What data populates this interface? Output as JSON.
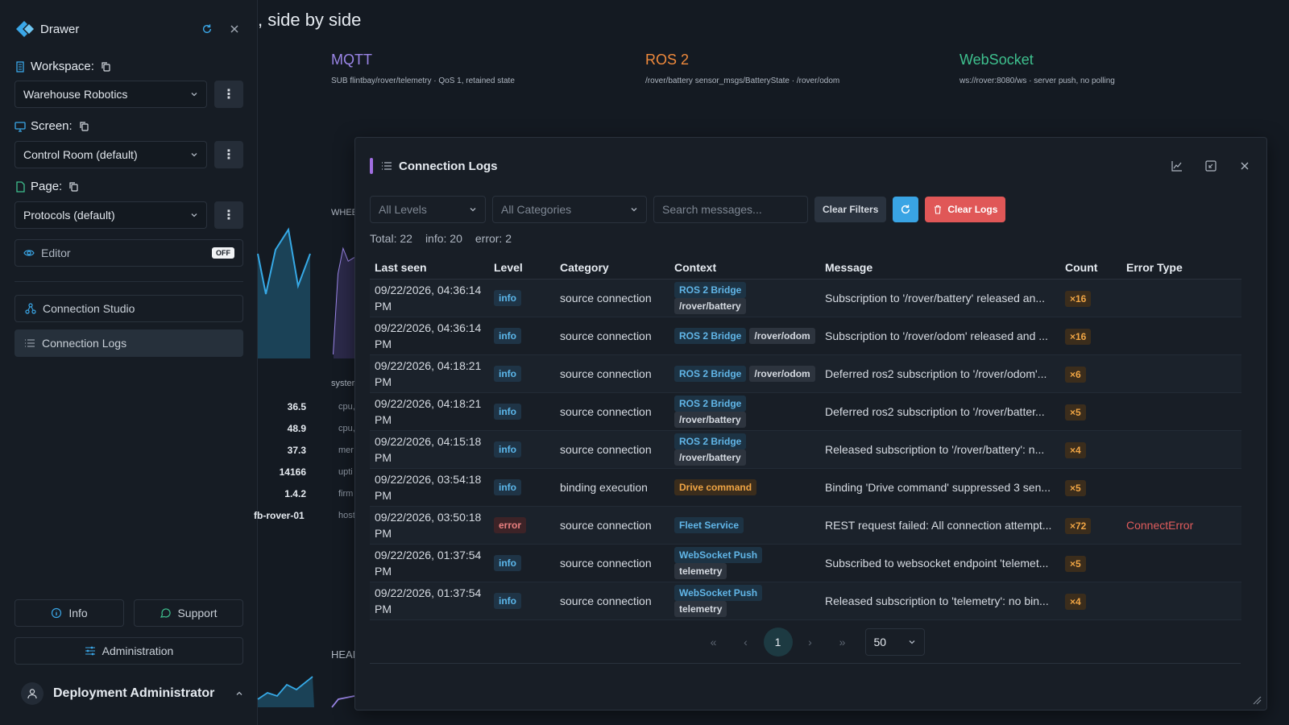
{
  "drawer": {
    "title": "Drawer",
    "workspace": {
      "label": "Workspace:",
      "value": "Warehouse Robotics"
    },
    "screen": {
      "label": "Screen:",
      "value": "Control Room (default)"
    },
    "page": {
      "label": "Page:",
      "value": "Protocols (default)"
    },
    "editor": {
      "label": "Editor",
      "state": "OFF"
    },
    "nav": [
      {
        "label": "Connection Studio",
        "icon": "network-icon"
      },
      {
        "label": "Connection Logs",
        "icon": "list-icon"
      }
    ],
    "footer": {
      "info": "Info",
      "support": "Support",
      "admin": "Administration",
      "user": "Deployment Administrator"
    }
  },
  "background": {
    "title": ", side by side",
    "protocols": [
      {
        "name": "MQTT",
        "sub": "SUB flintbay/rover/telemetry · QoS 1, retained state",
        "color": "#9b86e8"
      },
      {
        "name": "ROS 2",
        "sub": "/rover/battery sensor_msgs/BatteryState · /rover/odom",
        "color": "#f08a3c"
      },
      {
        "name": "WebSocket",
        "sub": "ws://rover:8080/ws · server push, no polling",
        "color": "#3ec08e"
      }
    ],
    "section_wheel": "WHEE",
    "section_system": "syster",
    "section_head": "HEAD",
    "stats": [
      {
        "value": "36.5",
        "key": "cpu,"
      },
      {
        "value": "48.9",
        "key": "cpu,"
      },
      {
        "value": "37.3",
        "key": "mer"
      },
      {
        "value": "14166",
        "key": "upti"
      },
      {
        "value": "1.4.2",
        "key": "firm"
      },
      {
        "value": "fb-rover-01",
        "key": "host"
      }
    ]
  },
  "logs": {
    "title": "Connection Logs",
    "filters": {
      "levels": "All Levels",
      "categories": "All Categories",
      "search_placeholder": "Search messages...",
      "clear_filters": "Clear Filters",
      "clear_logs": "Clear Logs"
    },
    "summary": {
      "total": "Total: 22",
      "info": "info: 20",
      "error": "error: 2"
    },
    "columns": {
      "last_seen": "Last seen",
      "level": "Level",
      "category": "Category",
      "context": "Context",
      "message": "Message",
      "count": "Count",
      "error_type": "Error Type"
    },
    "rows": [
      {
        "time": "09/22/2026, 04:36:14 PM",
        "level": "info",
        "category": "source connection",
        "ctx": "ROS 2 Bridge",
        "tag": "/rover/battery",
        "message": "Subscription to '/rover/battery' released an...",
        "count": "×16",
        "error_type": ""
      },
      {
        "time": "09/22/2026, 04:36:14 PM",
        "level": "info",
        "category": "source connection",
        "ctx": "ROS 2 Bridge",
        "tag": "/rover/odom",
        "message": "Subscription to '/rover/odom' released and ...",
        "count": "×16",
        "error_type": ""
      },
      {
        "time": "09/22/2026, 04:18:21 PM",
        "level": "info",
        "category": "source connection",
        "ctx": "ROS 2 Bridge",
        "tag": "/rover/odom",
        "message": "Deferred ros2 subscription to '/rover/odom'...",
        "count": "×6",
        "error_type": ""
      },
      {
        "time": "09/22/2026, 04:18:21 PM",
        "level": "info",
        "category": "source connection",
        "ctx": "ROS 2 Bridge",
        "tag": "/rover/battery",
        "message": "Deferred ros2 subscription to '/rover/batter...",
        "count": "×5",
        "error_type": ""
      },
      {
        "time": "09/22/2026, 04:15:18 PM",
        "level": "info",
        "category": "source connection",
        "ctx": "ROS 2 Bridge",
        "tag": "/rover/battery",
        "message": "Released subscription to '/rover/battery': n...",
        "count": "×4",
        "error_type": ""
      },
      {
        "time": "09/22/2026, 03:54:18 PM",
        "level": "info",
        "category": "binding execution",
        "ctx": "Drive command",
        "tag": "",
        "message": "Binding 'Drive command' suppressed 3 sen...",
        "count": "×5",
        "error_type": ""
      },
      {
        "time": "09/22/2026, 03:50:18 PM",
        "level": "error",
        "category": "source connection",
        "ctx": "Fleet Service",
        "tag": "",
        "message": "REST request failed: All connection attempt...",
        "count": "×72",
        "error_type": "ConnectError"
      },
      {
        "time": "09/22/2026, 01:37:54 PM",
        "level": "info",
        "category": "source connection",
        "ctx": "WebSocket Push",
        "tag": "telemetry",
        "message": "Subscribed to websocket endpoint 'telemet...",
        "count": "×5",
        "error_type": ""
      },
      {
        "time": "09/22/2026, 01:37:54 PM",
        "level": "info",
        "category": "source connection",
        "ctx": "WebSocket Push",
        "tag": "telemetry",
        "message": "Released subscription to 'telemetry': no bin...",
        "count": "×4",
        "error_type": ""
      }
    ],
    "pagination": {
      "first": "«",
      "prev": "‹",
      "current": "1",
      "next": "›",
      "last": "»",
      "page_size": "50"
    }
  }
}
